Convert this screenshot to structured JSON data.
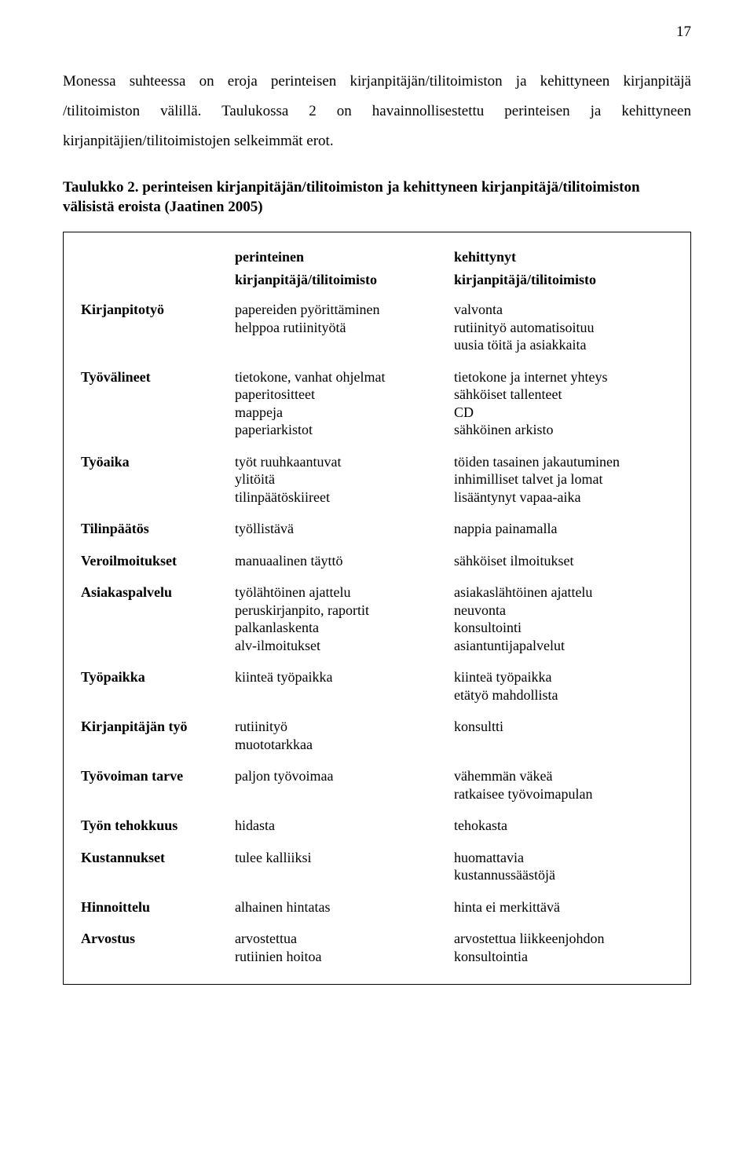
{
  "page_number": "17",
  "intro_text": "Monessa suhteessa on eroja perinteisen kirjanpitäjän/tilitoimiston ja kehittyneen kirjanpitäjä /tilitoimiston välillä. Taulukossa 2 on havainnollisestettu perinteisen ja kehittyneen kirjanpitäjien/tilitoimistojen selkeimmät erot.",
  "caption_bold1": "Taulukko 2.",
  "caption_bold2": "perinteisen kirjanpitäjän/tilitoimiston ja kehittyneen kirjanpitäjä/tilitoimiston välisistä eroista (Jaatinen 2005)",
  "headers": {
    "col1_a": "perinteinen",
    "col1_b": "kirjanpitäjä/tilitoimisto",
    "col2_a": "kehittynyt",
    "col2_b": "kirjanpitäjä/tilitoimisto"
  },
  "rows": [
    {
      "label": "Kirjanpitotyö",
      "a": [
        "papereiden pyörittäminen",
        "helppoa rutiinityötä",
        ""
      ],
      "b": [
        "valvonta",
        "rutiinityö automatisoituu",
        "uusia töitä ja asiakkaita"
      ]
    },
    {
      "label": "Työvälineet",
      "a": [
        "tietokone, vanhat ohjelmat",
        "paperitositteet",
        "mappeja",
        "paperiarkistot"
      ],
      "b": [
        "tietokone ja internet yhteys",
        "sähköiset tallenteet",
        "CD",
        "sähköinen arkisto"
      ]
    },
    {
      "label": "Työaika",
      "a": [
        "työt ruuhkaantuvat",
        "ylitöitä",
        "tilinpäätöskiireet"
      ],
      "b": [
        "töiden tasainen jakautuminen",
        "inhimilliset talvet ja lomat",
        "lisääntynyt vapaa-aika"
      ]
    },
    {
      "label": "Tilinpäätös",
      "a": [
        "työllistävä"
      ],
      "b": [
        "nappia painamalla"
      ]
    },
    {
      "label": "Veroilmoitukset",
      "a": [
        "manuaalinen täyttö"
      ],
      "b": [
        "sähköiset ilmoitukset"
      ]
    },
    {
      "label": "Asiakaspalvelu",
      "a": [
        "työlähtöinen ajattelu",
        "peruskirjanpito, raportit",
        "palkanlaskenta",
        "alv-ilmoitukset"
      ],
      "b": [
        "asiakaslähtöinen ajattelu",
        "neuvonta",
        "konsultointi",
        "asiantuntijapalvelut"
      ]
    },
    {
      "label": "Työpaikka",
      "a": [
        "kiinteä työpaikka",
        ""
      ],
      "b": [
        "kiinteä työpaikka",
        "etätyö mahdollista"
      ]
    },
    {
      "label": "Kirjanpitäjän työ",
      "a": [
        "rutiinityö",
        "muototarkkaa"
      ],
      "b": [
        "konsultti",
        ""
      ]
    },
    {
      "label": "Työvoiman tarve",
      "a": [
        "paljon työvoimaa",
        ""
      ],
      "b": [
        "vähemmän väkeä",
        "ratkaisee työvoimapulan"
      ]
    },
    {
      "label": "Työn tehokkuus",
      "a": [
        "hidasta"
      ],
      "b": [
        "tehokasta"
      ]
    },
    {
      "label": "Kustannukset",
      "a": [
        "tulee kalliiksi",
        ""
      ],
      "b": [
        "huomattavia",
        "kustannussäästöjä"
      ]
    },
    {
      "label": "Hinnoittelu",
      "a": [
        "alhainen hintatas"
      ],
      "b": [
        "hinta ei merkittävä"
      ]
    },
    {
      "label": "Arvostus",
      "a": [
        "arvostettua",
        "rutiinien hoitoa"
      ],
      "b": [
        "arvostettua liikkeenjohdon",
        "konsultointia"
      ]
    }
  ]
}
